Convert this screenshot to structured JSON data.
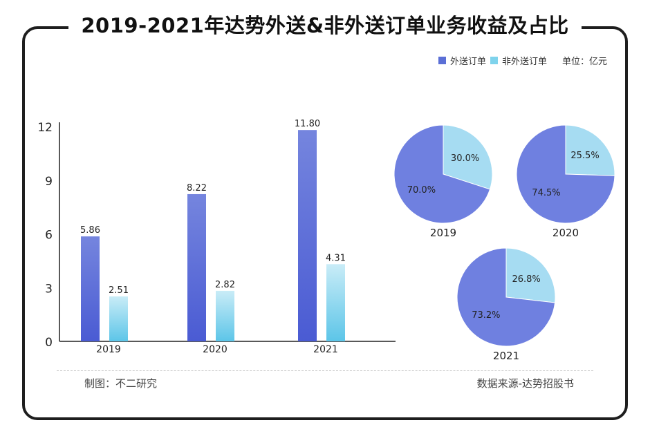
{
  "title": "2019-2021年达势外送&非外送订单业务收益及占比",
  "legend": {
    "items": [
      {
        "label": "外送订单",
        "color": "#5b6fd6"
      },
      {
        "label": "非外送订单",
        "color": "#7fd3ec"
      }
    ],
    "unit": "单位：亿元"
  },
  "footer": {
    "left": "制图：不二研究",
    "right": "数据来源-达势招股书"
  },
  "chart_data": [
    {
      "type": "bar",
      "categories": [
        "2019",
        "2020",
        "2021"
      ],
      "ylim": [
        0,
        12
      ],
      "yticks": [
        0,
        3,
        6,
        9,
        12
      ],
      "series": [
        {
          "name": "外送订单",
          "values": [
            5.86,
            8.22,
            11.8
          ],
          "labels": [
            "5.86",
            "8.22",
            "11.80"
          ],
          "color": "#5b6fd6"
        },
        {
          "name": "非外送订单",
          "values": [
            2.51,
            2.82,
            4.31
          ],
          "labels": [
            "2.51",
            "2.82",
            "4.31"
          ],
          "color": "#7fd3ec"
        }
      ],
      "unit": "亿元"
    },
    {
      "type": "pie",
      "title": "2019",
      "slices": [
        {
          "name": "外送订单",
          "value": 70.0,
          "label": "70.0%",
          "color": "#6f80e0"
        },
        {
          "name": "非外送订单",
          "value": 30.0,
          "label": "30.0%",
          "color": "#a6dcf2"
        }
      ]
    },
    {
      "type": "pie",
      "title": "2020",
      "slices": [
        {
          "name": "外送订单",
          "value": 74.5,
          "label": "74.5%",
          "color": "#6f80e0"
        },
        {
          "name": "非外送订单",
          "value": 25.5,
          "label": "25.5%",
          "color": "#a6dcf2"
        }
      ]
    },
    {
      "type": "pie",
      "title": "2021",
      "slices": [
        {
          "name": "外送订单",
          "value": 73.2,
          "label": "73.2%",
          "color": "#6f80e0"
        },
        {
          "name": "非外送订单",
          "value": 26.8,
          "label": "26.8%",
          "color": "#a6dcf2"
        }
      ]
    }
  ]
}
